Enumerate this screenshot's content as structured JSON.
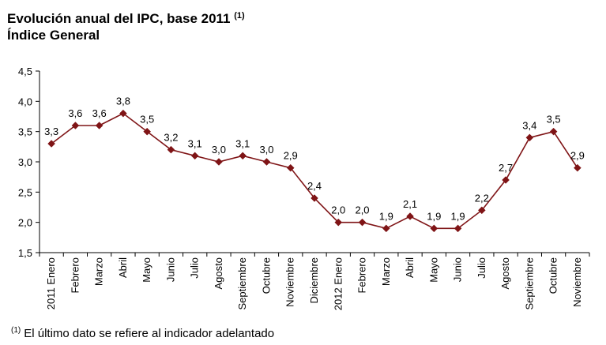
{
  "header": {
    "title": "Evolución anual del IPC, base 2011",
    "title_note": "(1)",
    "subtitle": "Índice General"
  },
  "footnote": {
    "marker": "(1)",
    "text": "El último dato se refiere al indicador adelantado"
  },
  "colors": {
    "series": "#7f1416",
    "axis": "#000000"
  },
  "chart_data": {
    "type": "line",
    "title": "Evolución anual del IPC, base 2011",
    "subtitle": "Índice General",
    "xlabel": "",
    "ylabel": "",
    "ylim": [
      1.5,
      4.5
    ],
    "ytick_step": 0.5,
    "ytick_labels": [
      "1,5",
      "2,0",
      "2,5",
      "3,0",
      "3,5",
      "4,0",
      "4,5"
    ],
    "grid": false,
    "categories": [
      "2011 Enero",
      "Febrero",
      "Marzo",
      "Abril",
      "Mayo",
      "Junio",
      "Julio",
      "Agosto",
      "Septiembre",
      "Octubre",
      "Noviembre",
      "Diciembre",
      "2012 Enero",
      "Febrero",
      "Marzo",
      "Abril",
      "Mayo",
      "Junio",
      "Julio",
      "Agosto",
      "Septiembre",
      "Octubre",
      "Noviembre"
    ],
    "series": [
      {
        "name": "Índice General",
        "values": [
          3.3,
          3.6,
          3.6,
          3.8,
          3.5,
          3.2,
          3.1,
          3.0,
          3.1,
          3.0,
          2.9,
          2.4,
          2.0,
          2.0,
          1.9,
          2.1,
          1.9,
          1.9,
          2.2,
          2.7,
          3.4,
          3.5,
          2.9
        ],
        "labels": [
          "3,3",
          "3,6",
          "3,6",
          "3,8",
          "3,5",
          "3,2",
          "3,1",
          "3,0",
          "3,1",
          "3,0",
          "2,9",
          "2,4",
          "2,0",
          "2,0",
          "1,9",
          "2,1",
          "1,9",
          "1,9",
          "2,2",
          "2,7",
          "3,4",
          "3,5",
          "2,9"
        ]
      }
    ]
  }
}
